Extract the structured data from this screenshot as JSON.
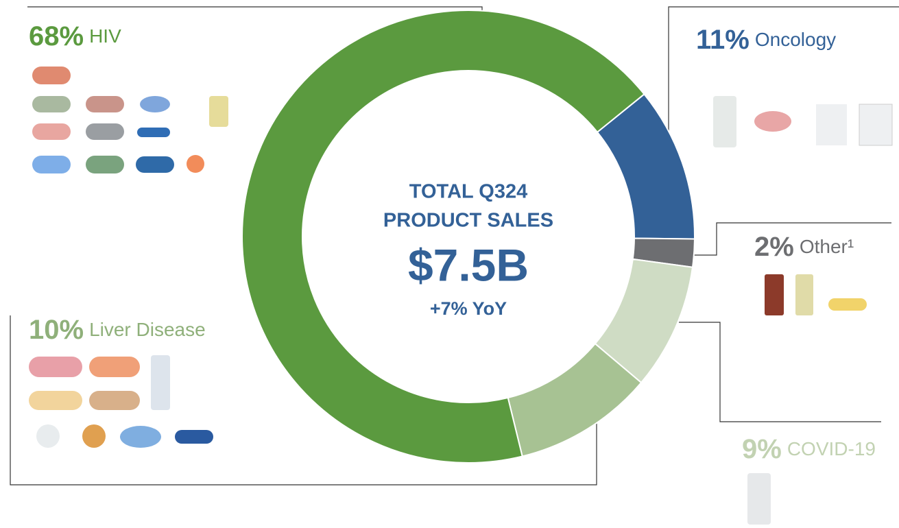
{
  "chart_data": {
    "type": "donut",
    "center_title_lines": [
      "TOTAL Q324",
      "PRODUCT SALES"
    ],
    "center_value": "$7.5B",
    "center_subtitle": "+7% YoY",
    "categories": [
      "Oncology",
      "Other¹",
      "COVID-19",
      "Liver Disease",
      "HIV"
    ],
    "values": [
      11,
      2,
      9,
      10,
      68
    ],
    "value_labels": [
      "11%",
      "2%",
      "9%",
      "10%",
      "68%"
    ],
    "colors": [
      "#336197",
      "#6d6e71",
      "#cfdcc4",
      "#a7c293",
      "#5b9a3f"
    ],
    "label_colors": [
      "#336197",
      "#6d6e71",
      "#c2d2b2",
      "#8fb07a",
      "#5b9a3f"
    ],
    "center_color": "#336197"
  }
}
